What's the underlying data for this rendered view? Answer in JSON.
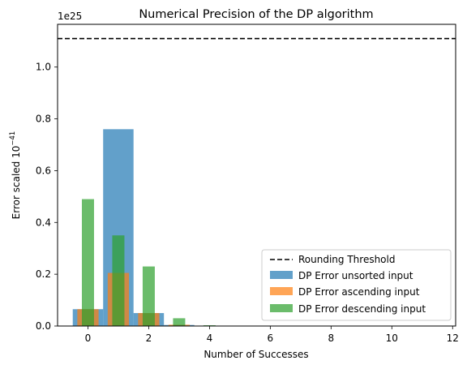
{
  "chart_data": {
    "type": "bar",
    "title": "Numerical Precision of the DP algorithm",
    "xlabel": "Number of Successes",
    "ylabel_base": "Error scaled 10",
    "ylabel_exponent": "−41",
    "y_offset_label": "1e25",
    "xlim": [
      -1,
      12.1
    ],
    "ylim": [
      0,
      1.165
    ],
    "xticks": [
      "0",
      "2",
      "4",
      "6",
      "8",
      "10",
      "12"
    ],
    "yticks": [
      "0.0",
      "0.2",
      "0.4",
      "0.6",
      "0.8",
      "1.0"
    ],
    "threshold": {
      "name": "Rounding Threshold",
      "value": 1.11,
      "style": "dashed",
      "color": "#000000"
    },
    "series": [
      {
        "name": "DP Error unsorted input",
        "color": "#1f77b4",
        "bar_width": 1.0,
        "x": [
          0,
          1,
          2,
          3,
          4,
          5,
          6,
          7,
          8,
          9,
          10,
          11
        ],
        "values": [
          0.065,
          0.76,
          0.05,
          0.004,
          0.0005,
          0.0001,
          0,
          0,
          0,
          0,
          0,
          0
        ]
      },
      {
        "name": "DP Error ascending input",
        "color": "#ff7f0e",
        "bar_width": 0.7,
        "x": [
          0,
          1,
          2,
          3,
          4,
          5,
          6,
          7,
          8,
          9,
          10,
          11
        ],
        "values": [
          0.065,
          0.205,
          0.05,
          0.005,
          0.001,
          0.0001,
          0,
          0,
          0,
          0,
          0,
          0
        ]
      },
      {
        "name": "DP Error descending input",
        "color": "#2ca02c",
        "bar_width": 0.4,
        "x": [
          0,
          1,
          2,
          3,
          4,
          5,
          6,
          7,
          8,
          9,
          10,
          11
        ],
        "values": [
          0.49,
          0.35,
          0.23,
          0.03,
          0.003,
          0.0004,
          0,
          0,
          0,
          0,
          0,
          0
        ]
      }
    ],
    "legend_position": "lower-right",
    "grid": false
  }
}
